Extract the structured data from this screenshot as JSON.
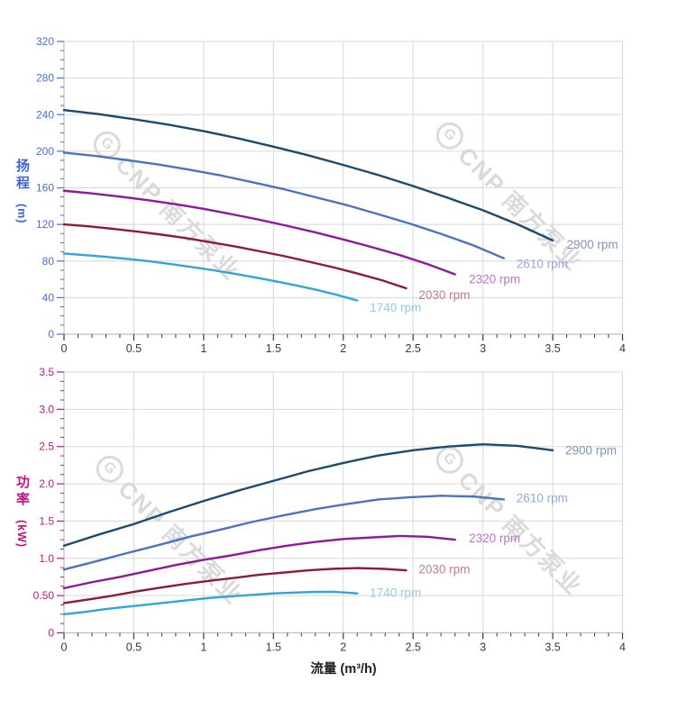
{
  "page": {
    "background": "#ffffff"
  },
  "watermark": {
    "logo": "G",
    "text": "CNP 南方泵业",
    "color": "#d2d2d2"
  },
  "chart_data": [
    {
      "id": "head",
      "type": "line",
      "title": "",
      "ylabel": "扬程",
      "y_unit": "(m)",
      "xlabel": "",
      "x_range": [
        0,
        4
      ],
      "y_range": [
        0,
        320
      ],
      "grid": true,
      "legend_position": "curve-end-labels",
      "colors": {
        "grid": "#d7d7d7",
        "axis_line": "#bfbfbf",
        "x_tick_text": "#3a3a3a",
        "y_tick_text": "#4a6de0"
      },
      "x_ticks": {
        "values": [
          0,
          0.5,
          1,
          1.5,
          2,
          2.5,
          3,
          3.5,
          4
        ],
        "labels": [
          "0",
          "0.5",
          "1",
          "1.5",
          "2",
          "2.5",
          "3",
          "3.5",
          "4"
        ],
        "minor_step": 0.1
      },
      "y_ticks": {
        "values": [
          0,
          40,
          80,
          120,
          160,
          200,
          240,
          280,
          320
        ],
        "labels": [
          "0",
          "40",
          "80",
          "120",
          "160",
          "200",
          "240",
          "280",
          "320"
        ],
        "minor_step": 10
      },
      "series": [
        {
          "name": "2900 rpm",
          "color": "#1b4b72",
          "label_color": "#7d95ba",
          "label_at": [
            3.6,
            98
          ],
          "points": [
            [
              0,
              245
            ],
            [
              0.25,
              240.5
            ],
            [
              0.5,
              235
            ],
            [
              0.75,
              229
            ],
            [
              1,
              222
            ],
            [
              1.25,
              214
            ],
            [
              1.5,
              205
            ],
            [
              1.75,
              195.5
            ],
            [
              2,
              185
            ],
            [
              2.25,
              174
            ],
            [
              2.5,
              162
            ],
            [
              2.75,
              149
            ],
            [
              3,
              135.5
            ],
            [
              3.25,
              120
            ],
            [
              3.5,
              102.5
            ]
          ]
        },
        {
          "name": "2610 rpm",
          "color": "#4a74c2",
          "label_color": "#93a9dc",
          "label_at": [
            3.24,
            77
          ],
          "points": [
            [
              0,
              198.5
            ],
            [
              0.23,
              194.8
            ],
            [
              0.45,
              190.3
            ],
            [
              0.68,
              185.4
            ],
            [
              0.9,
              179.8
            ],
            [
              1.13,
              173.3
            ],
            [
              1.35,
              166.1
            ],
            [
              1.58,
              158.3
            ],
            [
              1.8,
              149.8
            ],
            [
              2.03,
              140.9
            ],
            [
              2.25,
              131.2
            ],
            [
              2.48,
              120.7
            ],
            [
              2.7,
              109.7
            ],
            [
              2.93,
              97.2
            ],
            [
              3.15,
              83
            ]
          ]
        },
        {
          "name": "2320 rpm",
          "color": "#8e189e",
          "label_color": "#b876c6",
          "label_at": [
            2.9,
            60
          ],
          "points": [
            [
              0,
              156.8
            ],
            [
              0.2,
              153.9
            ],
            [
              0.4,
              150.4
            ],
            [
              0.6,
              146.5
            ],
            [
              0.8,
              142.1
            ],
            [
              1,
              137
            ],
            [
              1.2,
              131.2
            ],
            [
              1.4,
              125.1
            ],
            [
              1.6,
              118.4
            ],
            [
              1.8,
              111.3
            ],
            [
              2,
              103.6
            ],
            [
              2.2,
              95.4
            ],
            [
              2.4,
              86.7
            ],
            [
              2.6,
              76.8
            ],
            [
              2.8,
              65.5
            ]
          ]
        },
        {
          "name": "2030 rpm",
          "color": "#8f1b33",
          "label_color": "#c17d8d",
          "label_at": [
            2.54,
            43
          ],
          "points": [
            [
              0,
              120.1
            ],
            [
              0.18,
              117.8
            ],
            [
              0.35,
              115.2
            ],
            [
              0.53,
              112.1
            ],
            [
              0.7,
              108.8
            ],
            [
              0.88,
              104.9
            ],
            [
              1.05,
              100.5
            ],
            [
              1.23,
              95.8
            ],
            [
              1.4,
              90.7
            ],
            [
              1.58,
              85.3
            ],
            [
              1.75,
              79.4
            ],
            [
              1.93,
              73.1
            ],
            [
              2.1,
              66.4
            ],
            [
              2.28,
              58.8
            ],
            [
              2.45,
              50.2
            ]
          ]
        },
        {
          "name": "1740 rpm",
          "color": "#2fa5dc",
          "label_color": "#94c9ec",
          "label_at": [
            2.19,
            29
          ],
          "points": [
            [
              0,
              88.2
            ],
            [
              0.15,
              86.5
            ],
            [
              0.3,
              84.6
            ],
            [
              0.45,
              82.4
            ],
            [
              0.6,
              79.9
            ],
            [
              0.75,
              77
            ],
            [
              0.9,
              73.8
            ],
            [
              1.05,
              70.4
            ],
            [
              1.2,
              66.6
            ],
            [
              1.35,
              62.6
            ],
            [
              1.5,
              58.3
            ],
            [
              1.65,
              53.7
            ],
            [
              1.8,
              48.8
            ],
            [
              1.95,
              43.2
            ],
            [
              2.1,
              36.9
            ]
          ]
        }
      ]
    },
    {
      "id": "power",
      "type": "line",
      "title": "",
      "ylabel": "功率",
      "y_unit": "(kW)",
      "xlabel": "流量 (m³/h)",
      "x_range": [
        0,
        4
      ],
      "y_range": [
        0,
        3.5
      ],
      "grid": true,
      "legend_position": "curve-end-labels",
      "colors": {
        "grid": "#d7d7d7",
        "axis_line": "#bfbfbf",
        "x_tick_text": "#3a3a3a",
        "y_tick_text": "#c41585"
      },
      "x_ticks": {
        "values": [
          0,
          0.5,
          1,
          1.5,
          2,
          2.5,
          3,
          3.5,
          4
        ],
        "labels": [
          "0",
          "0.5",
          "1",
          "1.5",
          "2",
          "2.5",
          "3",
          "3.5",
          "4"
        ],
        "minor_step": 0.1
      },
      "y_ticks": {
        "values": [
          0,
          0.5,
          1,
          1.5,
          2,
          2.5,
          3,
          3.5
        ],
        "labels": [
          "0",
          "0.50",
          "1.0",
          "1.5",
          "2.0",
          "2.5",
          "3.0",
          "3.5"
        ],
        "minor_step": 0.125
      },
      "series": [
        {
          "name": "2900 rpm",
          "color": "#1b4b72",
          "label_color": "#7d95ba",
          "label_at": [
            3.59,
            2.45
          ],
          "points": [
            [
              0,
              1.17
            ],
            [
              0.25,
              1.32
            ],
            [
              0.5,
              1.46
            ],
            [
              0.75,
              1.62
            ],
            [
              1,
              1.77
            ],
            [
              1.25,
              1.91
            ],
            [
              1.5,
              2.04
            ],
            [
              1.75,
              2.17
            ],
            [
              2,
              2.28
            ],
            [
              2.25,
              2.38
            ],
            [
              2.5,
              2.45
            ],
            [
              2.75,
              2.5
            ],
            [
              3,
              2.53
            ],
            [
              3.25,
              2.51
            ],
            [
              3.5,
              2.45
            ]
          ]
        },
        {
          "name": "2610 rpm",
          "color": "#4a74c2",
          "label_color": "#93a9dc",
          "label_at": [
            3.24,
            1.81
          ],
          "points": [
            [
              0,
              0.85
            ],
            [
              0.23,
              0.96
            ],
            [
              0.45,
              1.07
            ],
            [
              0.68,
              1.18
            ],
            [
              0.9,
              1.29
            ],
            [
              1.13,
              1.39
            ],
            [
              1.35,
              1.49
            ],
            [
              1.58,
              1.58
            ],
            [
              1.8,
              1.66
            ],
            [
              2.03,
              1.73
            ],
            [
              2.25,
              1.79
            ],
            [
              2.48,
              1.82
            ],
            [
              2.7,
              1.84
            ],
            [
              2.93,
              1.83
            ],
            [
              3.15,
              1.79
            ]
          ]
        },
        {
          "name": "2320 rpm",
          "color": "#8e189e",
          "label_color": "#b876c6",
          "label_at": [
            2.9,
            1.27
          ],
          "points": [
            [
              0,
              0.6
            ],
            [
              0.2,
              0.68
            ],
            [
              0.4,
              0.75
            ],
            [
              0.6,
              0.83
            ],
            [
              0.8,
              0.91
            ],
            [
              1,
              0.98
            ],
            [
              1.2,
              1.04
            ],
            [
              1.4,
              1.11
            ],
            [
              1.6,
              1.17
            ],
            [
              1.8,
              1.22
            ],
            [
              2,
              1.26
            ],
            [
              2.2,
              1.28
            ],
            [
              2.4,
              1.3
            ],
            [
              2.6,
              1.29
            ],
            [
              2.8,
              1.25
            ]
          ]
        },
        {
          "name": "2030 rpm",
          "color": "#8f1b33",
          "label_color": "#c17d8d",
          "label_at": [
            2.54,
            0.85
          ],
          "points": [
            [
              0,
              0.4
            ],
            [
              0.18,
              0.45
            ],
            [
              0.35,
              0.5
            ],
            [
              0.53,
              0.56
            ],
            [
              0.7,
              0.61
            ],
            [
              0.88,
              0.66
            ],
            [
              1.05,
              0.7
            ],
            [
              1.23,
              0.74
            ],
            [
              1.4,
              0.78
            ],
            [
              1.58,
              0.81
            ],
            [
              1.75,
              0.84
            ],
            [
              1.93,
              0.86
            ],
            [
              2.1,
              0.87
            ],
            [
              2.28,
              0.86
            ],
            [
              2.45,
              0.84
            ]
          ]
        },
        {
          "name": "1740 rpm",
          "color": "#2fa5dc",
          "label_color": "#94c9ec",
          "label_at": [
            2.19,
            0.54
          ],
          "points": [
            [
              0,
              0.25
            ],
            [
              0.15,
              0.28
            ],
            [
              0.3,
              0.32
            ],
            [
              0.45,
              0.35
            ],
            [
              0.6,
              0.38
            ],
            [
              0.75,
              0.41
            ],
            [
              0.9,
              0.44
            ],
            [
              1.05,
              0.47
            ],
            [
              1.2,
              0.49
            ],
            [
              1.35,
              0.51
            ],
            [
              1.5,
              0.53
            ],
            [
              1.65,
              0.54
            ],
            [
              1.8,
              0.55
            ],
            [
              1.95,
              0.55
            ],
            [
              2.1,
              0.53
            ]
          ]
        }
      ]
    }
  ]
}
